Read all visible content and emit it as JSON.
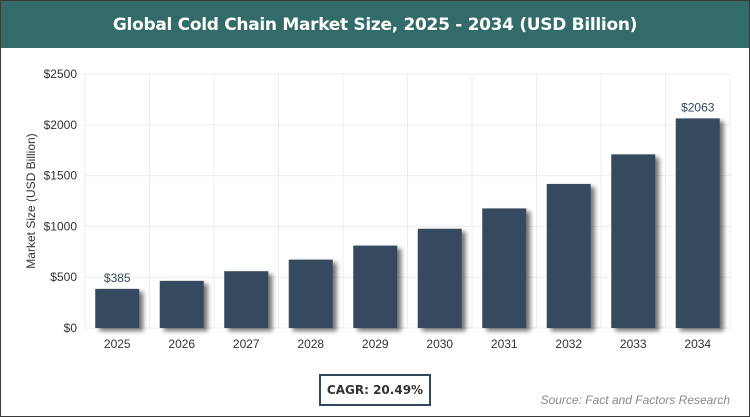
{
  "chart_data": {
    "type": "bar",
    "title": "Global Cold Chain Market Size, 2025 - 2034 (USD Billion)",
    "xlabel": "",
    "ylabel": "Market Size (USD Billion)",
    "categories": [
      "2025",
      "2026",
      "2027",
      "2028",
      "2029",
      "2030",
      "2031",
      "2032",
      "2033",
      "2034"
    ],
    "values": [
      385,
      464,
      559,
      673,
      811,
      977,
      1177,
      1418,
      1709,
      2063
    ],
    "data_labels": {
      "0": "$385",
      "9": "$2063"
    },
    "ylim": [
      0,
      2500
    ],
    "yticks": [
      0,
      500,
      1000,
      1500,
      2000,
      2500
    ],
    "ytick_labels": [
      "$0",
      "$500",
      "$1000",
      "$1500",
      "$2000",
      "$2500"
    ],
    "grid": true,
    "bar_color": "#34495e",
    "header_color": "#336b69"
  },
  "footer": {
    "cagr": "CAGR: 20.49%",
    "source": "Source: Fact and Factors Research"
  }
}
